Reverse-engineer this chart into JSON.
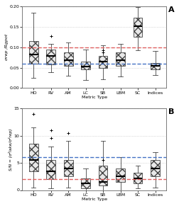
{
  "categories": [
    "HD",
    "RV",
    "AM",
    "LC",
    "SB",
    "LBM",
    "SC",
    "Indices"
  ],
  "plot_A": {
    "title": "A",
    "ylabel": "σrep /Rgpot",
    "ylim": [
      0.0,
      0.2
    ],
    "yticks": [
      0.0,
      0.05,
      0.1,
      0.15,
      0.2
    ],
    "blue_line": 0.06,
    "red_line": 0.1,
    "boxes": [
      {
        "q1": 0.06,
        "median": 0.082,
        "q3": 0.115,
        "whislo": 0.025,
        "whishi": 0.185,
        "fliers": []
      },
      {
        "q1": 0.058,
        "median": 0.078,
        "q3": 0.095,
        "whislo": 0.038,
        "whishi": 0.108,
        "fliers": [
          0.128
        ]
      },
      {
        "q1": 0.055,
        "median": 0.068,
        "q3": 0.088,
        "whislo": 0.03,
        "whishi": 0.112,
        "fliers": []
      },
      {
        "q1": 0.045,
        "median": 0.052,
        "q3": 0.065,
        "whislo": 0.02,
        "whishi": 0.095,
        "fliers": []
      },
      {
        "q1": 0.05,
        "median": 0.065,
        "q3": 0.078,
        "whislo": 0.022,
        "whishi": 0.105,
        "fliers": [
          0.088,
          0.093
        ]
      },
      {
        "q1": 0.055,
        "median": 0.068,
        "q3": 0.088,
        "whislo": 0.028,
        "whishi": 0.108,
        "fliers": []
      },
      {
        "q1": 0.125,
        "median": 0.152,
        "q3": 0.172,
        "whislo": 0.092,
        "whishi": 0.198,
        "fliers": []
      },
      {
        "q1": 0.045,
        "median": 0.055,
        "q3": 0.062,
        "whislo": 0.032,
        "whishi": 0.09,
        "fliers": []
      }
    ]
  },
  "plot_B": {
    "title": "B",
    "ylabel": "S/N = (σ²lake/σ²rep)",
    "ylim": [
      0,
      15
    ],
    "yticks": [
      0,
      5,
      10,
      15
    ],
    "blue_line": 6.0,
    "red_line": 2.0,
    "boxes": [
      {
        "q1": 3.5,
        "median": 5.5,
        "q3": 8.5,
        "whislo": 0.5,
        "whishi": 11.5,
        "fliers": [
          14.0
        ]
      },
      {
        "q1": 2.0,
        "median": 3.5,
        "q3": 5.5,
        "whislo": 0.3,
        "whishi": 8.0,
        "fliers": [
          9.5,
          11.0
        ]
      },
      {
        "q1": 2.5,
        "median": 4.0,
        "q3": 5.5,
        "whislo": 0.5,
        "whishi": 9.0,
        "fliers": [
          10.5
        ]
      },
      {
        "q1": 0.3,
        "median": 1.2,
        "q3": 2.2,
        "whislo": 0.0,
        "whishi": 4.0,
        "fliers": []
      },
      {
        "q1": 0.8,
        "median": 1.5,
        "q3": 4.5,
        "whislo": 0.0,
        "whishi": 9.0,
        "fliers": [
          5.5
        ]
      },
      {
        "q1": 1.5,
        "median": 2.5,
        "q3": 4.0,
        "whislo": 0.0,
        "whishi": 6.0,
        "fliers": []
      },
      {
        "q1": 1.2,
        "median": 2.2,
        "q3": 3.2,
        "whislo": 0.3,
        "whishi": 4.5,
        "fliers": []
      },
      {
        "q1": 2.5,
        "median": 4.0,
        "q3": 5.5,
        "whislo": 0.5,
        "whishi": 7.0,
        "fliers": []
      }
    ]
  },
  "box_facecolor": "#e8e8e8",
  "box_edgecolor": "#444444",
  "median_color": "#000000",
  "whisker_color": "#444444",
  "flier_color": "#222222",
  "blue_line_color": "#4472c4",
  "red_line_color": "#e06060",
  "xlabel": "Metric Type",
  "background_color": "#ffffff",
  "grid_color": "#bbbbbb"
}
